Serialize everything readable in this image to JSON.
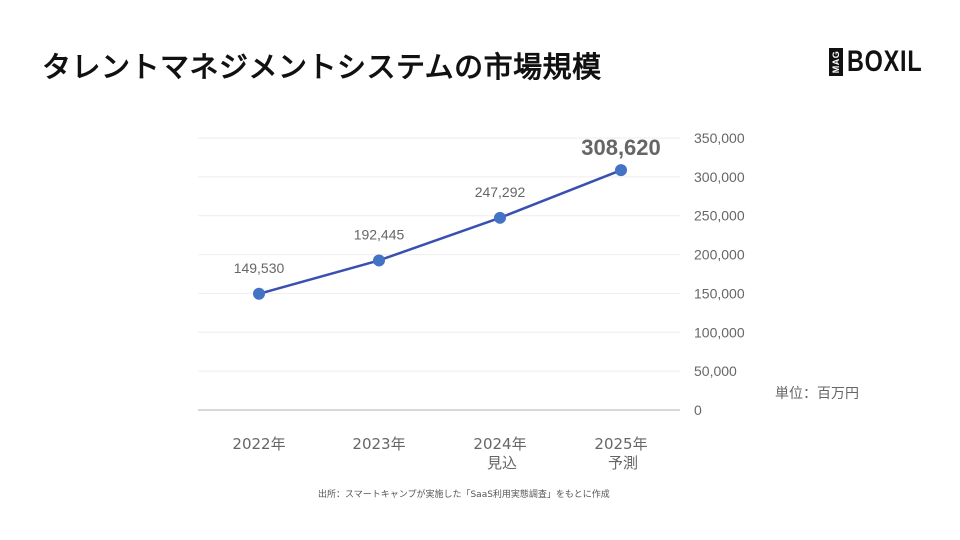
{
  "header": {
    "title": "タレントマネジメントシステムの市場規模",
    "logo": {
      "badge": "MAG",
      "text": "BOXIL"
    }
  },
  "unit_label": "単位：百万円",
  "source_note": "出所：スマートキャンプが実施した「SaaS利用実態調査」をもとに作成",
  "colors": {
    "line": "#3a50b0",
    "marker": "#4472c4",
    "gridline": "#eeeeee",
    "axis": "#cccccc",
    "label_text": "#666666",
    "title_text": "#111111"
  },
  "chart_data": {
    "type": "line",
    "title": "タレントマネジメントシステムの市場規模",
    "categories": [
      "2022年",
      "2023年",
      "2024年 見込",
      "2025年 予測"
    ],
    "category_lines": [
      [
        "2022年"
      ],
      [
        "2023年"
      ],
      [
        "2024年",
        "見込"
      ],
      [
        "2025年",
        "予測"
      ]
    ],
    "series": [
      {
        "name": "市場規模",
        "values": [
          149530,
          192445,
          247292,
          308620
        ]
      }
    ],
    "data_labels": [
      "149,530",
      "192,445",
      "247,292",
      "308,620"
    ],
    "highlighted_point": 3,
    "xlabel": "",
    "ylabel": "単位：百万円",
    "ylim": [
      0,
      350000
    ],
    "y_ticks": [
      0,
      50000,
      100000,
      150000,
      200000,
      250000,
      300000,
      350000
    ],
    "y_tick_labels": [
      "0",
      "50,000",
      "100,000",
      "150,000",
      "200,000",
      "250,000",
      "300,000",
      "350,000"
    ],
    "y_axis_position": "right",
    "grid": true,
    "legend": null
  }
}
